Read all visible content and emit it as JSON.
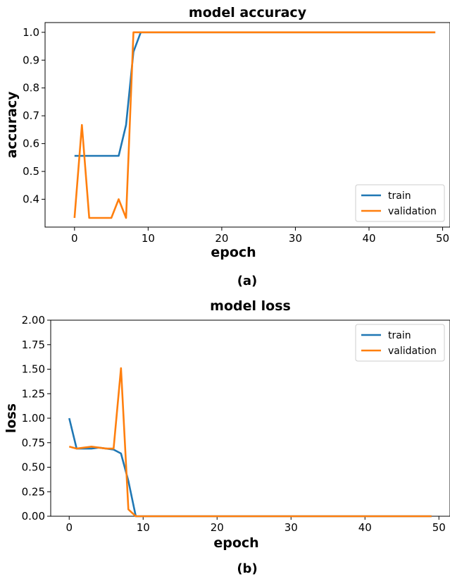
{
  "chart_data": [
    {
      "type": "line",
      "title": "model accuracy",
      "xlabel": "epoch",
      "ylabel": "accuracy",
      "caption": "(a)",
      "xlim": [
        -4,
        51
      ],
      "ylim": [
        0.3,
        1.035
      ],
      "xticks": [
        0,
        10,
        20,
        30,
        40,
        50
      ],
      "yticks": [
        0.4,
        0.5,
        0.6,
        0.7,
        0.8,
        0.9,
        1.0
      ],
      "ytick_labels": [
        "0.4",
        "0.5",
        "0.6",
        "0.7",
        "0.8",
        "0.9",
        "1.0"
      ],
      "legend": "bottom-right",
      "grid": false,
      "series": [
        {
          "name": "train",
          "color": "#1f77b4",
          "points": [
            [
              0,
              0.556
            ],
            [
              1,
              0.556
            ],
            [
              2,
              0.556
            ],
            [
              3,
              0.556
            ],
            [
              4,
              0.556
            ],
            [
              5,
              0.556
            ],
            [
              6,
              0.556
            ],
            [
              7,
              0.667
            ],
            [
              8,
              0.93
            ],
            [
              9,
              1.0
            ],
            [
              49,
              1.0
            ]
          ]
        },
        {
          "name": "validation",
          "color": "#ff7f0e",
          "points": [
            [
              0,
              0.333
            ],
            [
              1,
              0.667
            ],
            [
              2,
              0.333
            ],
            [
              3,
              0.333
            ],
            [
              4,
              0.333
            ],
            [
              5,
              0.333
            ],
            [
              6,
              0.4
            ],
            [
              7,
              0.333
            ],
            [
              8,
              1.0
            ],
            [
              49,
              1.0
            ]
          ]
        }
      ]
    },
    {
      "type": "line",
      "title": "model loss",
      "xlabel": "epoch",
      "ylabel": "loss",
      "caption": "(b)",
      "xlim": [
        -2.5,
        51.5
      ],
      "ylim": [
        0,
        2.0
      ],
      "xticks": [
        0,
        10,
        20,
        30,
        40,
        50
      ],
      "yticks": [
        0,
        0.25,
        0.5,
        0.75,
        1.0,
        1.25,
        1.5,
        1.75,
        2.0
      ],
      "ytick_labels": [
        "0.00",
        "0.25",
        "0.50",
        "0.75",
        "1.00",
        "1.25",
        "1.50",
        "1.75",
        "2.00"
      ],
      "legend": "top-right",
      "grid": false,
      "series": [
        {
          "name": "train",
          "color": "#1f77b4",
          "points": [
            [
              0,
              1.0
            ],
            [
              1,
              0.69
            ],
            [
              2,
              0.69
            ],
            [
              3,
              0.69
            ],
            [
              4,
              0.7
            ],
            [
              5,
              0.69
            ],
            [
              6,
              0.68
            ],
            [
              7,
              0.64
            ],
            [
              8,
              0.36
            ],
            [
              9,
              0.0
            ],
            [
              49,
              0.0
            ]
          ]
        },
        {
          "name": "validation",
          "color": "#ff7f0e",
          "points": [
            [
              0,
              0.71
            ],
            [
              1,
              0.69
            ],
            [
              2,
              0.7
            ],
            [
              3,
              0.71
            ],
            [
              4,
              0.7
            ],
            [
              5,
              0.69
            ],
            [
              6,
              0.69
            ],
            [
              7,
              1.51
            ],
            [
              8,
              0.07
            ],
            [
              9,
              0.0
            ],
            [
              49,
              0.0
            ]
          ]
        }
      ]
    }
  ]
}
